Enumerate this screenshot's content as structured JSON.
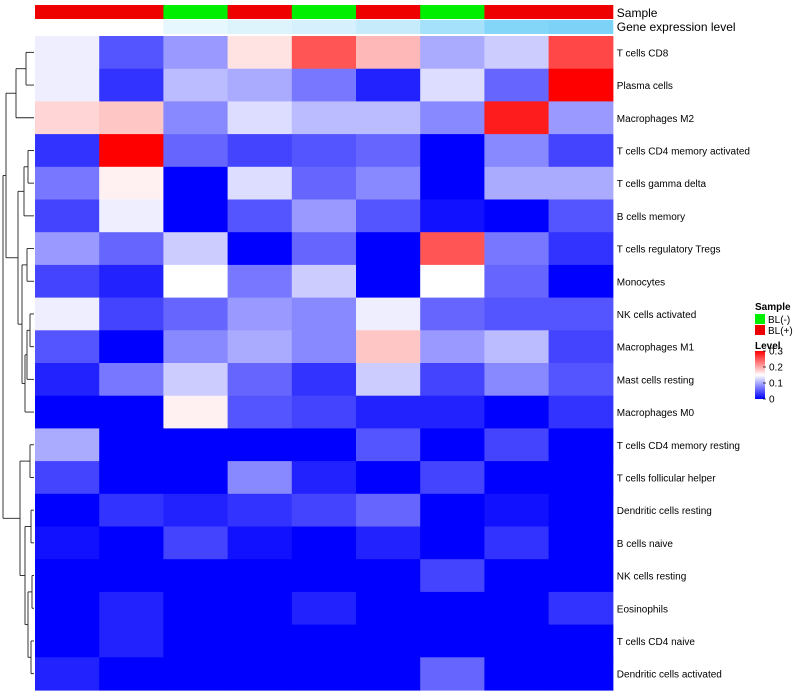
{
  "chart_data": {
    "type": "heatmap",
    "title": "",
    "annotation_rows": [
      {
        "name": "Sample"
      },
      {
        "name": "Gene expression level"
      }
    ],
    "columns": [
      {
        "sample": "BL(+)",
        "gene_expression": 0.0
      },
      {
        "sample": "BL(+)",
        "gene_expression": 0.0
      },
      {
        "sample": "BL(-)",
        "gene_expression": 0.15
      },
      {
        "sample": "BL(+)",
        "gene_expression": 0.2
      },
      {
        "sample": "BL(-)",
        "gene_expression": 0.25
      },
      {
        "sample": "BL(+)",
        "gene_expression": 0.35
      },
      {
        "sample": "BL(-)",
        "gene_expression": 0.55
      },
      {
        "sample": "BL(+)",
        "gene_expression": 0.75
      },
      {
        "sample": "BL(+)",
        "gene_expression": 0.8
      }
    ],
    "rows": [
      "T cells CD8",
      "Plasma cells",
      "Macrophages M2",
      "T cells CD4 memory activated",
      "T cells gamma delta",
      "B cells memory",
      "T cells regulatory  Tregs",
      "Monocytes",
      "NK cells activated",
      "Macrophages M1",
      "Mast cells resting",
      "Macrophages M0",
      "T cells CD4 memory resting",
      "T cells follicular helper",
      "Dendritic cells resting",
      "B cells naive",
      "NK cells resting",
      "Eosinophils",
      "T cells CD4 naive",
      "Dendritic cells activated"
    ],
    "values": [
      [
        0.14,
        0.05,
        0.09,
        0.17,
        0.27,
        0.2,
        0.1,
        0.12,
        0.28
      ],
      [
        0.14,
        0.03,
        0.11,
        0.1,
        0.07,
        0.02,
        0.13,
        0.06,
        0.33
      ],
      [
        0.18,
        0.19,
        0.08,
        0.13,
        0.11,
        0.11,
        0.08,
        0.31,
        0.09
      ],
      [
        0.03,
        0.33,
        0.06,
        0.04,
        0.05,
        0.06,
        0.0,
        0.08,
        0.04
      ],
      [
        0.07,
        0.16,
        0.0,
        0.13,
        0.06,
        0.08,
        0.0,
        0.1,
        0.1
      ],
      [
        0.04,
        0.14,
        0.0,
        0.05,
        0.09,
        0.05,
        0.01,
        0.0,
        0.05
      ],
      [
        0.09,
        0.06,
        0.12,
        0.0,
        0.06,
        0.0,
        0.27,
        0.07,
        0.03
      ],
      [
        0.04,
        0.02,
        0.15,
        0.07,
        0.12,
        0.0,
        0.15,
        0.06,
        0.0
      ],
      [
        0.14,
        0.04,
        0.06,
        0.09,
        0.08,
        0.14,
        0.06,
        0.05,
        0.05
      ],
      [
        0.05,
        0.0,
        0.08,
        0.1,
        0.08,
        0.19,
        0.09,
        0.11,
        0.04
      ],
      [
        0.02,
        0.07,
        0.12,
        0.06,
        0.03,
        0.12,
        0.04,
        0.08,
        0.05
      ],
      [
        0.0,
        0.0,
        0.16,
        0.05,
        0.04,
        0.02,
        0.02,
        0.0,
        0.03
      ],
      [
        0.1,
        0.0,
        0.0,
        0.0,
        0.0,
        0.05,
        0.0,
        0.04,
        0.0
      ],
      [
        0.04,
        0.0,
        0.0,
        0.08,
        0.02,
        0.0,
        0.04,
        0.0,
        0.0
      ],
      [
        0.0,
        0.03,
        0.02,
        0.03,
        0.04,
        0.06,
        0.0,
        0.01,
        0.0
      ],
      [
        0.01,
        0.0,
        0.04,
        0.01,
        0.0,
        0.02,
        0.0,
        0.03,
        0.0
      ],
      [
        0.0,
        0.0,
        0.0,
        0.0,
        0.0,
        0.0,
        0.04,
        0.0,
        0.0
      ],
      [
        0.0,
        0.02,
        0.0,
        0.0,
        0.02,
        0.0,
        0.0,
        0.0,
        0.03
      ],
      [
        0.0,
        0.02,
        0.0,
        0.0,
        0.0,
        0.0,
        0.0,
        0.0,
        0.0
      ],
      [
        0.02,
        0.0,
        0.0,
        0.0,
        0.0,
        0.0,
        0.06,
        0.0,
        0.0
      ]
    ],
    "color_scale": {
      "low": "#0000ff",
      "mid": "#ffffff",
      "high": "#ff0000",
      "domain": [
        0,
        0.15,
        0.33
      ]
    },
    "annotation_colors": {
      "sample": {
        "BL(-)": "#00ee00",
        "BL(+)": "#ee0000"
      },
      "gene_expression": {
        "low": "#ffffff",
        "high": "#5bc8f5"
      }
    },
    "legend": {
      "sample_title": "Sample",
      "sample_items": [
        {
          "label": "BL(-)",
          "color": "#00ee00"
        },
        {
          "label": "BL(+)",
          "color": "#ee0000"
        }
      ],
      "level_title": "Level",
      "level_ticks": [
        "0.3",
        "0.2",
        "0.1",
        "0"
      ],
      "level_tick_values": [
        0.3,
        0.2,
        0.1,
        0
      ],
      "placement": "right"
    }
  }
}
